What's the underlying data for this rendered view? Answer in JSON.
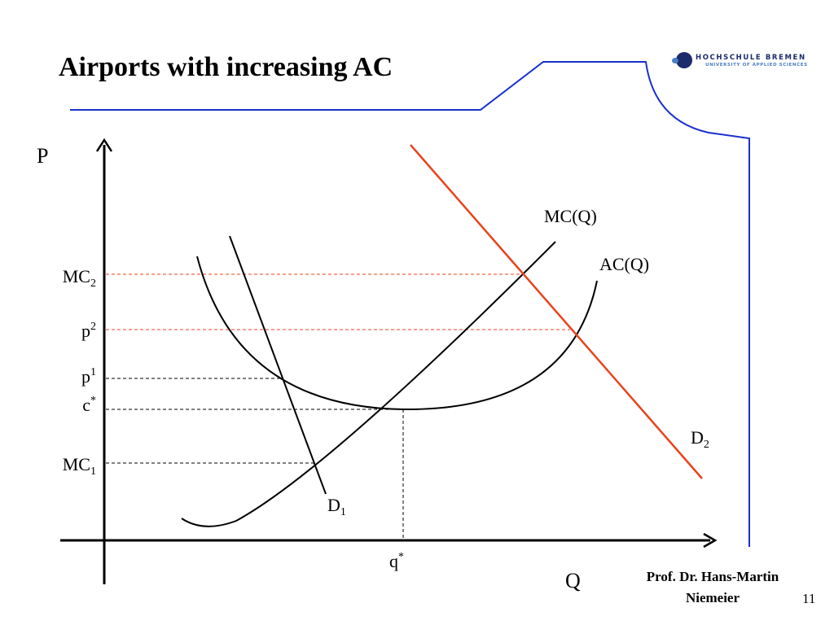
{
  "slide": {
    "title": "Airports with increasing AC",
    "page_number": "11",
    "author_line1": "Prof. Dr. Hans-Martin",
    "author_line2": "Niemeier"
  },
  "logo": {
    "line1": "HOCHSCHULE BREMEN",
    "line2": "UNIVERSITY OF APPLIED SCIENCES"
  },
  "diagram": {
    "axes": {
      "y_label": "P",
      "x_label": "Q"
    },
    "price_labels": [
      {
        "base": "MC",
        "sub": "2",
        "sup": ""
      },
      {
        "base": "p",
        "sub": "",
        "sup": "2"
      },
      {
        "base": "p",
        "sub": "",
        "sup": "1"
      },
      {
        "base": "c",
        "sub": "",
        "sup": "*"
      },
      {
        "base": "MC",
        "sub": "1",
        "sup": ""
      }
    ],
    "quantity_label": {
      "base": "q",
      "sup": "*"
    },
    "curves": {
      "mc": "MC(Q)",
      "ac": "AC(Q)",
      "d1": {
        "base": "D",
        "sub": "1"
      },
      "d2": {
        "base": "D",
        "sub": "2"
      }
    }
  },
  "colors": {
    "accent_blue": "#1a2fd0",
    "demand_red": "#e8431c",
    "guide_red": "#e8431c",
    "curve_black": "#000000"
  }
}
